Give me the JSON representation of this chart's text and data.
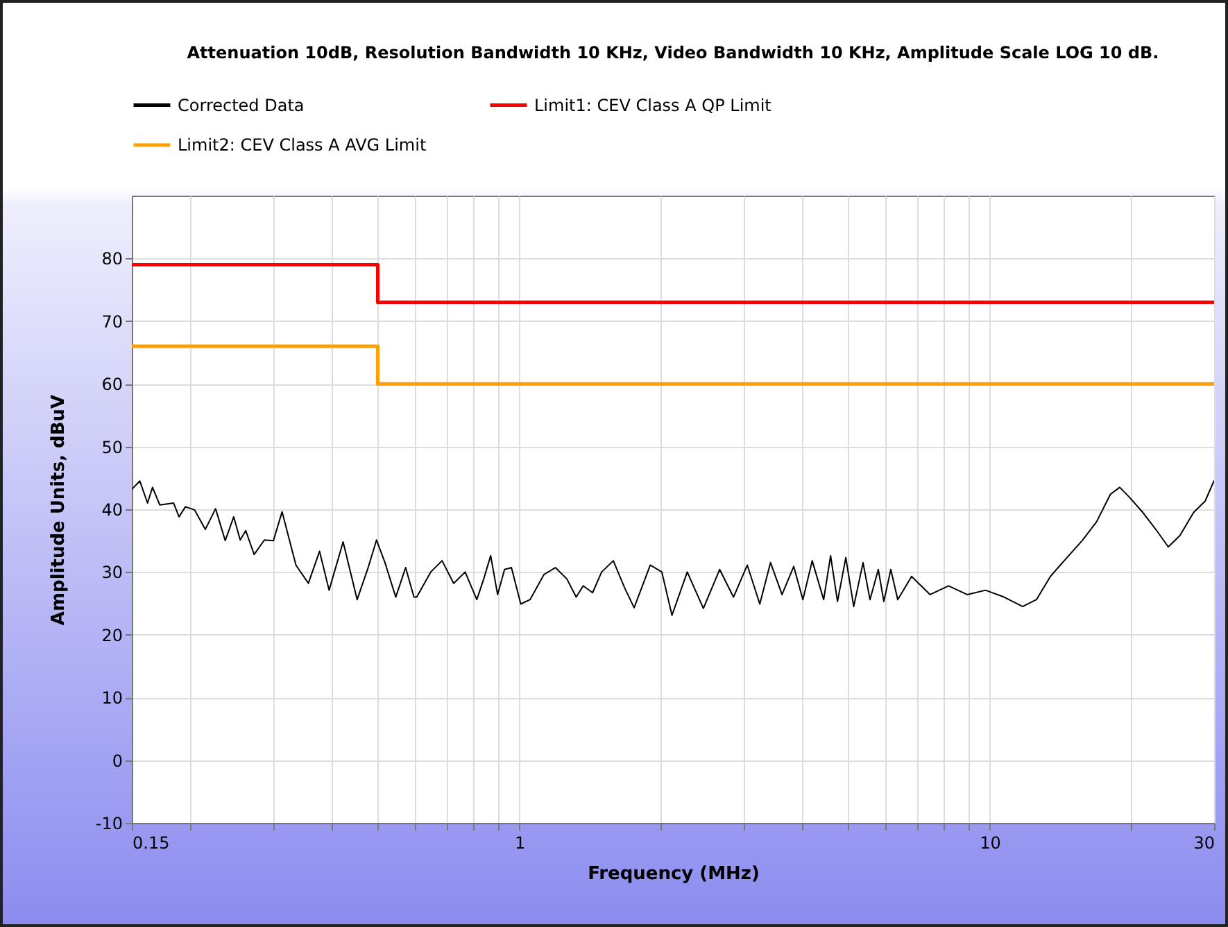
{
  "chart_data": {
    "type": "line",
    "title": "Attenuation 10dB, Resolution Bandwidth 10 KHz, Video Bandwidth 10 KHz, Amplitude Scale LOG 10 dB.",
    "xlabel": "Frequency (MHz)",
    "ylabel": "Amplitude Units, dBuV",
    "log": "x",
    "grid": true,
    "legend": "top",
    "xlim": [
      0.15,
      30
    ],
    "ylim": [
      -10,
      90
    ],
    "xticks": [
      0.15,
      {
        "value": 0.2,
        "label": null
      },
      {
        "value": 0.3,
        "label": null
      },
      {
        "value": 0.4,
        "label": null
      },
      {
        "value": 0.5,
        "label": null
      },
      {
        "value": 0.6,
        "label": null
      },
      {
        "value": 0.7,
        "label": null
      },
      {
        "value": 0.8,
        "label": null
      },
      {
        "value": 0.9,
        "label": null
      },
      1,
      {
        "value": 2,
        "label": null
      },
      {
        "value": 3,
        "label": null
      },
      {
        "value": 4,
        "label": null
      },
      {
        "value": 5,
        "label": null
      },
      {
        "value": 6,
        "label": null
      },
      {
        "value": 7,
        "label": null
      },
      {
        "value": 8,
        "label": null
      },
      {
        "value": 9,
        "label": null
      },
      10,
      {
        "value": 20,
        "label": null
      },
      30
    ],
    "yticks": [
      -10,
      0,
      10,
      20,
      30,
      40,
      50,
      60,
      70,
      80
    ],
    "series": [
      {
        "name": "Corrected Data",
        "color": "#000000",
        "x": [
          0.15,
          0.156,
          0.162,
          0.166,
          0.172,
          0.184,
          0.189,
          0.195,
          0.204,
          0.215,
          0.226,
          0.237,
          0.247,
          0.255,
          0.262,
          0.273,
          0.287,
          0.3,
          0.313,
          0.335,
          0.356,
          0.376,
          0.394,
          0.422,
          0.452,
          0.477,
          0.497,
          0.518,
          0.546,
          0.573,
          0.597,
          0.605,
          0.648,
          0.685,
          0.725,
          0.767,
          0.812,
          0.84,
          0.869,
          0.899,
          0.93,
          0.962,
          1.007,
          1.054,
          1.128,
          1.193,
          1.262,
          1.321,
          1.367,
          1.431,
          1.496,
          1.584,
          1.676,
          1.754,
          1.898,
          2.009,
          2.111,
          2.275,
          2.462,
          2.666,
          2.853,
          3.052,
          3.245,
          3.42,
          3.618,
          3.831,
          4.007,
          4.194,
          4.436,
          4.589,
          4.747,
          4.944,
          5.139,
          5.379,
          5.565,
          5.796,
          5.956,
          6.162,
          6.375,
          6.823,
          7.468,
          8.176,
          8.954,
          9.8,
          10.73,
          11.75,
          12.57,
          13.46,
          14.4,
          15.76,
          16.87,
          18.06,
          18.9,
          19.77,
          21.16,
          22.65,
          23.97,
          25.36,
          27.14,
          28.71,
          30
        ],
        "values": [
          43.2,
          44.5,
          41,
          43.5,
          40.7,
          41,
          38.8,
          40.4,
          39.9,
          36.8,
          40.1,
          35,
          38.8,
          35.1,
          36.6,
          32.8,
          35.1,
          35,
          39.6,
          31.1,
          28.2,
          33.3,
          27.1,
          34.8,
          25.6,
          30.7,
          35.1,
          31.5,
          26,
          30.7,
          26,
          26,
          30,
          31.8,
          28.2,
          30,
          25.6,
          28.9,
          32.6,
          26.4,
          30.4,
          30.7,
          24.9,
          25.6,
          29.6,
          30.7,
          28.9,
          26,
          27.8,
          26.7,
          30,
          31.8,
          27.4,
          24.3,
          31.1,
          30,
          23.1,
          30,
          24.2,
          30.4,
          26,
          31.1,
          24.9,
          31.5,
          26.4,
          30.9,
          25.6,
          31.8,
          25.6,
          32.6,
          25.3,
          32.3,
          24.5,
          31.5,
          25.6,
          30.4,
          25.3,
          30.4,
          25.6,
          29.3,
          26.4,
          27.8,
          26.4,
          27.1,
          26,
          24.5,
          25.6,
          29.3,
          31.8,
          35.1,
          38,
          42.4,
          43.5,
          42,
          39.5,
          36.6,
          34,
          35.8,
          39.5,
          41.3,
          44.6
        ]
      },
      {
        "name": "Limit1: CEV Class A QP Limit",
        "type": "step",
        "color": "#ff0000",
        "x": [
          0.15,
          0.5,
          30
        ],
        "values": [
          79,
          73,
          73
        ]
      },
      {
        "name": "Limit2: CEV Class A AVG Limit",
        "type": "step",
        "color": "#ffa000",
        "x": [
          0.15,
          0.5,
          30
        ],
        "values": [
          66,
          60,
          60
        ]
      }
    ]
  }
}
